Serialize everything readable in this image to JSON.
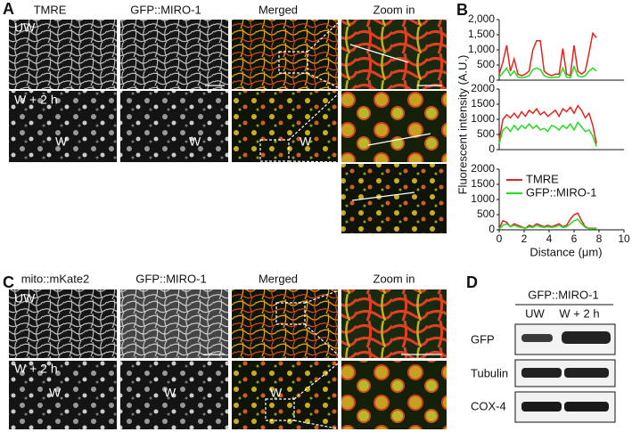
{
  "panel_a": {
    "label": "A",
    "columns": [
      "TMRE",
      "GFP::MIRO-1",
      "Merged",
      "Zoom in"
    ],
    "rows": [
      "UW",
      "W + 2 h"
    ],
    "wound": "W"
  },
  "panel_b": {
    "label": "B"
  },
  "chart_data": [
    {
      "type": "line",
      "x": [
        0,
        0.3,
        0.6,
        0.9,
        1.2,
        1.5,
        1.8,
        2.1,
        2.4,
        2.7,
        3,
        3.3,
        3.6,
        3.9,
        4.2,
        4.5,
        4.8,
        5.1,
        5.4,
        5.7,
        6,
        6.3,
        6.6,
        6.9,
        7.2,
        7.5,
        7.8
      ],
      "series": [
        {
          "color": "#e8231f",
          "values": [
            200,
            600,
            1150,
            300,
            700,
            200,
            150,
            200,
            300,
            1000,
            1300,
            1300,
            300,
            200,
            150,
            200,
            200,
            1050,
            200,
            150,
            1150,
            300,
            200,
            300,
            900,
            1550,
            1400
          ]
        },
        {
          "color": "#22dd22",
          "values": [
            100,
            250,
            400,
            150,
            300,
            100,
            80,
            100,
            150,
            350,
            400,
            350,
            150,
            100,
            80,
            100,
            100,
            400,
            100,
            80,
            450,
            150,
            100,
            150,
            300,
            400,
            300
          ]
        }
      ],
      "xlim": [
        0,
        10
      ],
      "ylim": [
        0,
        2000
      ],
      "yticks": [
        0,
        500,
        {
          "value": 1000,
          "label": "1,000"
        },
        {
          "value": 1500,
          "label": "1,500"
        },
        {
          "value": 2000,
          "label": "2,000"
        }
      ]
    },
    {
      "type": "line",
      "x": [
        0,
        0.3,
        0.6,
        0.9,
        1.2,
        1.5,
        1.8,
        2.1,
        2.4,
        2.7,
        3,
        3.3,
        3.6,
        3.9,
        4.2,
        4.5,
        4.8,
        5.1,
        5.4,
        5.7,
        6,
        6.3,
        6.6,
        6.9,
        7.2,
        7.5,
        7.8
      ],
      "series": [
        {
          "color": "#e8231f",
          "values": [
            300,
            1000,
            1150,
            1050,
            1200,
            1050,
            1250,
            1100,
            1300,
            1200,
            1350,
            1150,
            1250,
            1100,
            1200,
            1300,
            1100,
            1350,
            1250,
            1400,
            1200,
            1450,
            1300,
            1050,
            1200,
            800,
            200
          ]
        },
        {
          "color": "#22dd22",
          "values": [
            200,
            650,
            750,
            600,
            800,
            650,
            800,
            700,
            850,
            700,
            800,
            650,
            700,
            600,
            800,
            750,
            650,
            800,
            700,
            850,
            650,
            900,
            750,
            600,
            650,
            450,
            100
          ]
        }
      ],
      "xlim": [
        0,
        10
      ],
      "ylim": [
        0,
        2000
      ],
      "yticks": [
        0,
        500,
        1000,
        1500,
        2000
      ],
      "y_label": "Fluorescent intensity (A.U.)"
    },
    {
      "type": "line",
      "x": [
        0,
        0.3,
        0.6,
        0.9,
        1.2,
        1.5,
        1.8,
        2.1,
        2.4,
        2.7,
        3,
        3.3,
        3.6,
        3.9,
        4.2,
        4.5,
        4.8,
        5.1,
        5.4,
        5.7,
        6,
        6.3,
        6.6,
        6.9,
        7.2,
        7.5,
        7.8
      ],
      "series": [
        {
          "name": "TMRE",
          "color": "#e8231f",
          "values": [
            50,
            300,
            250,
            100,
            200,
            150,
            100,
            50,
            150,
            100,
            200,
            150,
            100,
            150,
            100,
            150,
            200,
            100,
            150,
            350,
            500,
            550,
            300,
            100,
            50,
            50,
            50
          ]
        },
        {
          "name": "GFP::MIRO-1",
          "color": "#22dd22",
          "values": [
            30,
            150,
            200,
            100,
            150,
            100,
            80,
            50,
            100,
            80,
            150,
            100,
            80,
            100,
            80,
            100,
            150,
            80,
            100,
            200,
            300,
            350,
            200,
            80,
            40,
            40,
            40
          ]
        }
      ],
      "xlim": [
        0,
        10
      ],
      "ylim": [
        0,
        2000
      ],
      "yticks": [
        0,
        500,
        1000,
        1500,
        2000
      ],
      "xticks": [
        0,
        2,
        4,
        6,
        8,
        10
      ],
      "x_label": "Distance (μm)",
      "legend": "upper right"
    }
  ],
  "panel_c": {
    "label": "C",
    "columns": [
      "mito::mKate2",
      "GFP::MIRO-1",
      "Merged",
      "Zoom in"
    ],
    "rows": [
      "UW",
      "W + 2 h"
    ],
    "wound": "W"
  },
  "panel_d": {
    "label": "D",
    "header": "GFP::MIRO-1",
    "lanes": [
      "UW",
      "W + 2 h"
    ],
    "blots": [
      "GFP",
      "Tubulin",
      "COX-4"
    ]
  }
}
